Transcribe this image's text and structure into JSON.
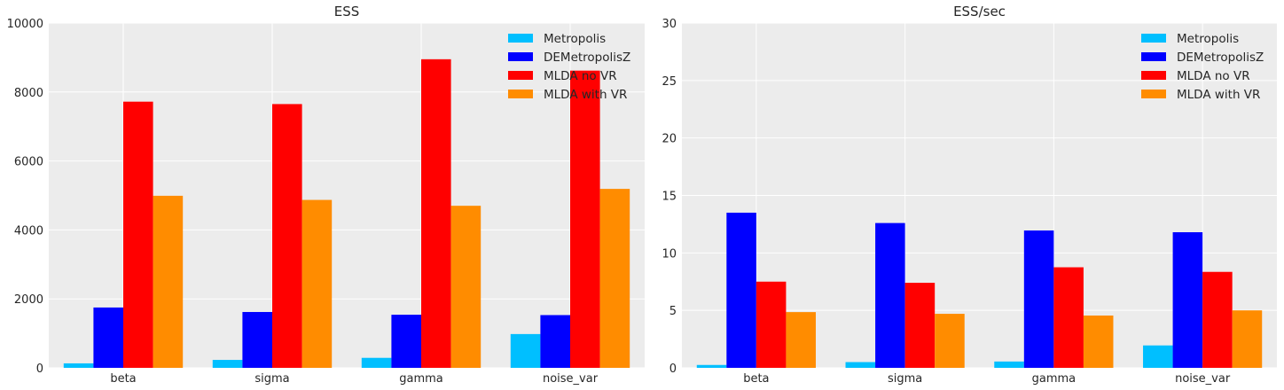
{
  "colors": {
    "plot_background": "#ececec",
    "grid": "#ffffff",
    "text": "#262626"
  },
  "chart_data": [
    {
      "type": "bar",
      "title": "ESS",
      "xlabel": "",
      "ylabel": "",
      "categories": [
        "beta",
        "sigma",
        "gamma",
        "noise_var"
      ],
      "ylim": [
        0,
        10000
      ],
      "yticks": [
        0,
        2000,
        4000,
        6000,
        8000,
        10000
      ],
      "grid": true,
      "legend": "top-right",
      "series": [
        {
          "name": "Metropolis",
          "color": "#00bfff",
          "values": [
            130,
            230,
            290,
            980
          ]
        },
        {
          "name": "DEMetropolisZ",
          "color": "#0000ff",
          "values": [
            1750,
            1620,
            1540,
            1530
          ]
        },
        {
          "name": "MLDA no VR",
          "color": "#ff0000",
          "values": [
            7720,
            7650,
            8950,
            8620
          ]
        },
        {
          "name": "MLDA with VR",
          "color": "#ff8c00",
          "values": [
            4990,
            4870,
            4700,
            5190
          ]
        }
      ]
    },
    {
      "type": "bar",
      "title": "ESS/sec",
      "xlabel": "",
      "ylabel": "",
      "categories": [
        "beta",
        "sigma",
        "gamma",
        "noise_var"
      ],
      "ylim": [
        0,
        30
      ],
      "yticks": [
        0,
        5,
        10,
        15,
        20,
        25,
        30
      ],
      "grid": true,
      "legend": "top-right",
      "series": [
        {
          "name": "Metropolis",
          "color": "#00bfff",
          "values": [
            0.25,
            0.5,
            0.55,
            1.95
          ]
        },
        {
          "name": "DEMetropolisZ",
          "color": "#0000ff",
          "values": [
            13.5,
            12.6,
            11.95,
            11.8
          ]
        },
        {
          "name": "MLDA no VR",
          "color": "#ff0000",
          "values": [
            7.5,
            7.4,
            8.75,
            8.35
          ]
        },
        {
          "name": "MLDA with VR",
          "color": "#ff8c00",
          "values": [
            4.85,
            4.7,
            4.55,
            5.0
          ]
        }
      ]
    }
  ]
}
